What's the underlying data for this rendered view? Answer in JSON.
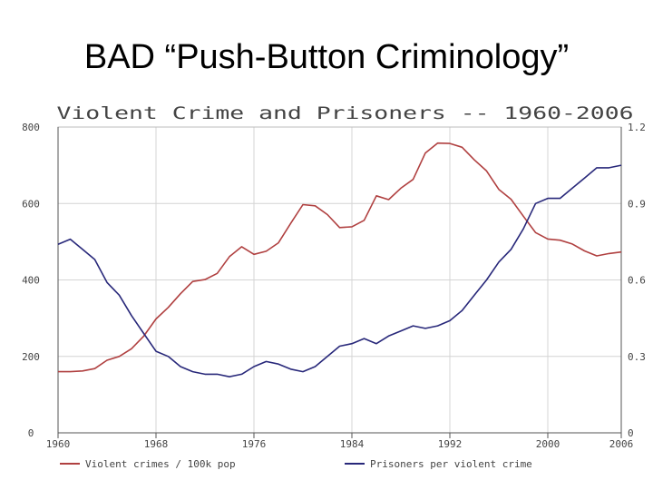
{
  "slide": {
    "title": "BAD “Push-Button Criminology”"
  },
  "colors": {
    "series1": "#b04040",
    "series2": "#28287a",
    "grid": "#d4d4d4",
    "axis": "#555555",
    "text": "#444444"
  },
  "chart_data": {
    "type": "line",
    "title": "Violent Crime and Prisoners -- 1960-2006",
    "xlim": [
      1960,
      2006
    ],
    "x_ticks": [
      1960,
      1968,
      1976,
      1984,
      1992,
      2000,
      2006
    ],
    "x_tick_labels": [
      "1960",
      "1968",
      "1976",
      "1984",
      "1992",
      "2000",
      "2006"
    ],
    "y_left": {
      "lim": [
        0,
        800
      ],
      "ticks": [
        0,
        200,
        400,
        600,
        800
      ],
      "tick_labels": [
        "0",
        "200",
        "400",
        "600",
        "800"
      ]
    },
    "y_right": {
      "lim": [
        0,
        1.2
      ],
      "ticks": [
        0,
        0.3,
        0.6,
        0.9,
        1.2
      ],
      "tick_labels": [
        "0",
        "0.3",
        "0.6",
        "0.9",
        "1.2"
      ]
    },
    "grid": true,
    "legend_position": "bottom",
    "series": [
      {
        "name": "Violent crimes / 100k pop",
        "axis": "left",
        "x": [
          1960,
          1961,
          1962,
          1963,
          1964,
          1965,
          1966,
          1967,
          1968,
          1969,
          1970,
          1971,
          1972,
          1973,
          1974,
          1975,
          1976,
          1977,
          1978,
          1979,
          1980,
          1981,
          1982,
          1983,
          1984,
          1985,
          1986,
          1987,
          1988,
          1989,
          1990,
          1991,
          1992,
          1993,
          1994,
          1995,
          1996,
          1997,
          1998,
          1999,
          2000,
          2001,
          2002,
          2003,
          2004,
          2005,
          2006
        ],
        "values": [
          160,
          160,
          162,
          168,
          190,
          200,
          220,
          253,
          298,
          328,
          364,
          396,
          401,
          417,
          461,
          487,
          467,
          475,
          497,
          548,
          597,
          594,
          571,
          537,
          539,
          556,
          620,
          610,
          640,
          663,
          732,
          758,
          757,
          747,
          714,
          685,
          637,
          611,
          567,
          524,
          507,
          504,
          494,
          476,
          463,
          469,
          473
        ]
      },
      {
        "name": "Prisoners per violent crime",
        "axis": "right",
        "x": [
          1960,
          1961,
          1962,
          1963,
          1964,
          1965,
          1966,
          1967,
          1968,
          1969,
          1970,
          1971,
          1972,
          1973,
          1974,
          1975,
          1976,
          1977,
          1978,
          1979,
          1980,
          1981,
          1982,
          1983,
          1984,
          1985,
          1986,
          1987,
          1988,
          1989,
          1990,
          1991,
          1992,
          1993,
          1994,
          1995,
          1996,
          1997,
          1998,
          1999,
          2000,
          2001,
          2002,
          2003,
          2004,
          2005,
          2006
        ],
        "values": [
          0.74,
          0.76,
          0.72,
          0.68,
          0.59,
          0.54,
          0.46,
          0.39,
          0.32,
          0.3,
          0.26,
          0.24,
          0.23,
          0.23,
          0.22,
          0.23,
          0.26,
          0.28,
          0.27,
          0.25,
          0.24,
          0.26,
          0.3,
          0.34,
          0.35,
          0.37,
          0.35,
          0.38,
          0.4,
          0.42,
          0.41,
          0.42,
          0.44,
          0.48,
          0.54,
          0.6,
          0.67,
          0.72,
          0.8,
          0.9,
          0.92,
          0.92,
          0.96,
          1.0,
          1.04,
          1.04,
          1.05
        ]
      }
    ]
  }
}
